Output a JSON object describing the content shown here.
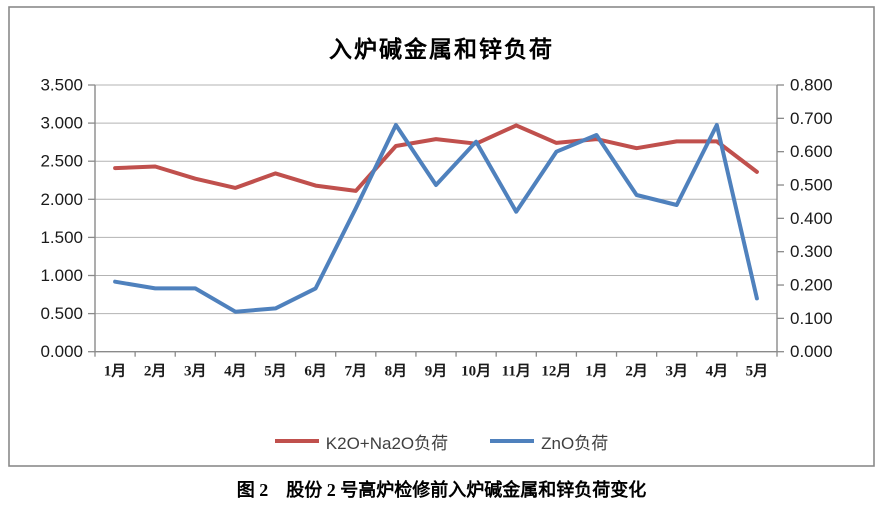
{
  "caption": {
    "text": "图 2　股份 2 号高炉检修前入炉碱金属和锌负荷变化"
  },
  "colors": {
    "series_k2o_na2o": "#C0504D",
    "series_zno": "#4F81BD",
    "grid": "#B3B3B3",
    "axis": "#8A8A8A",
    "frame_border": "#8A8A8A",
    "legend_text": "#404040"
  },
  "chart_data": {
    "type": "line",
    "title": "入炉碱金属和锌负荷",
    "categories": [
      "1月",
      "2月",
      "3月",
      "4月",
      "5月",
      "6月",
      "7月",
      "8月",
      "9月",
      "10月",
      "11月",
      "12月",
      "1月",
      "2月",
      "3月",
      "4月",
      "5月"
    ],
    "series": [
      {
        "name": "K2O+Na2O负荷",
        "color": "#C0504D",
        "axis": "left",
        "values": [
          2.41,
          2.43,
          2.27,
          2.15,
          2.34,
          2.18,
          2.11,
          2.7,
          2.79,
          2.73,
          2.97,
          2.74,
          2.79,
          2.67,
          2.76,
          2.76,
          2.36
        ]
      },
      {
        "name": "ZnO负荷",
        "color": "#4F81BD",
        "axis": "right",
        "values": [
          0.21,
          0.19,
          0.19,
          0.12,
          0.13,
          0.19,
          0.43,
          0.68,
          0.5,
          0.63,
          0.42,
          0.6,
          0.65,
          0.47,
          0.44,
          0.68,
          0.16
        ]
      }
    ],
    "y_left": {
      "min": 0,
      "max": 3.5,
      "ticks": [
        "3.500",
        "3.000",
        "2.500",
        "2.000",
        "1.500",
        "1.000",
        "0.500",
        "0.000"
      ]
    },
    "y_right": {
      "min": 0,
      "max": 0.8,
      "ticks": [
        "0.800",
        "0.700",
        "0.600",
        "0.500",
        "0.400",
        "0.300",
        "0.200",
        "0.100",
        "0.000"
      ]
    },
    "legend_position": "bottom",
    "grid": true
  }
}
